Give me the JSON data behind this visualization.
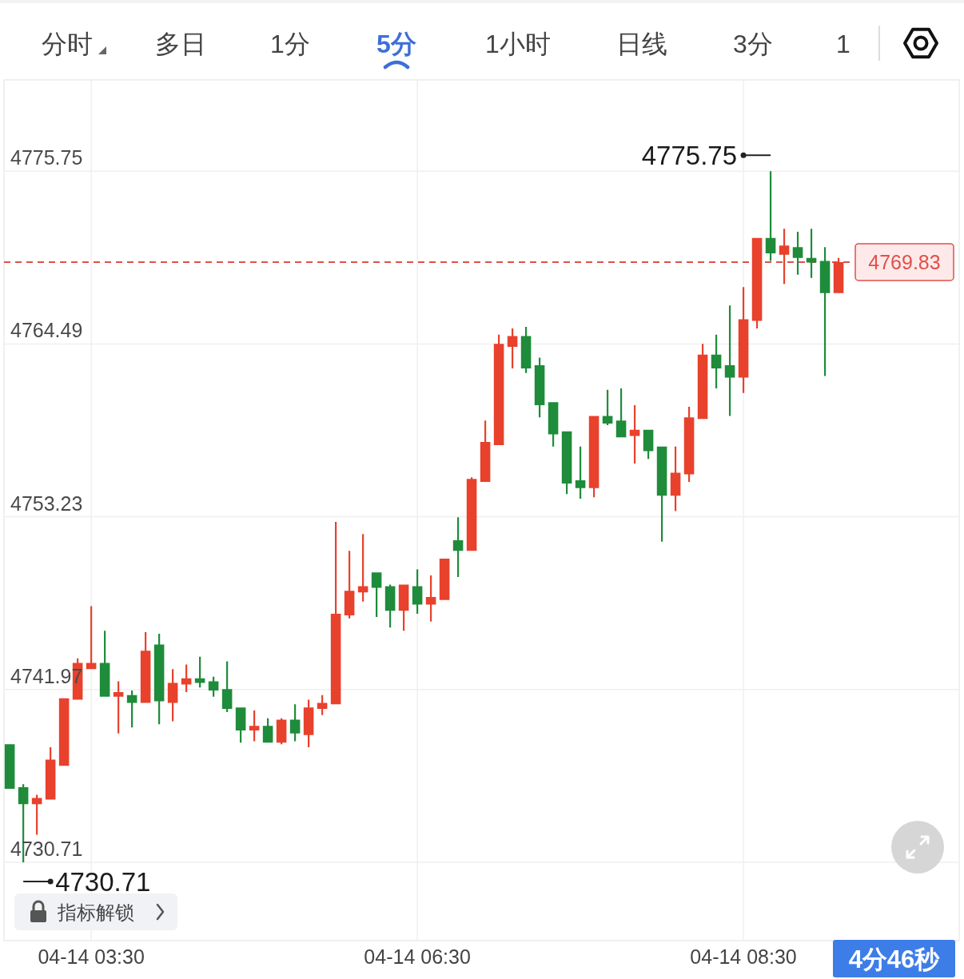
{
  "chart_data": {
    "type": "candlestick",
    "categories": [
      null,
      null,
      null,
      null,
      null,
      null,
      "04-14 03:30",
      null,
      null,
      null,
      null,
      null,
      null,
      null,
      null,
      null,
      null,
      null,
      null,
      null,
      null,
      null,
      null,
      null,
      null,
      null,
      null,
      null,
      null,
      null,
      "04-14 06:30",
      null,
      null,
      null,
      null,
      null,
      null,
      null,
      null,
      null,
      null,
      null,
      null,
      null,
      null,
      null,
      null,
      null,
      null,
      null,
      null,
      null,
      null,
      null,
      "04-14 08:30",
      null,
      null,
      null,
      null,
      null,
      null,
      null
    ],
    "ohlc": [
      [
        4738.4,
        4738.4,
        4735.5,
        4735.5
      ],
      [
        4735.6,
        4735.8,
        4730.71,
        4734.5
      ],
      [
        4734.5,
        4735.1,
        4732.5,
        4734.9
      ],
      [
        4734.8,
        4738.2,
        4734.8,
        4737.4
      ],
      [
        4737.0,
        4741.4,
        4737.0,
        4741.4
      ],
      [
        4741.3,
        4744.0,
        4741.3,
        4743.7
      ],
      [
        4743.3,
        4747.4,
        4743.3,
        4743.7
      ],
      [
        4743.7,
        4745.8,
        4741.5,
        4741.5
      ],
      [
        4741.5,
        4742.5,
        4739.1,
        4741.8
      ],
      [
        4741.6,
        4741.9,
        4739.5,
        4741.1
      ],
      [
        4741.1,
        4745.7,
        4741.1,
        4744.5
      ],
      [
        4744.9,
        4745.6,
        4739.7,
        4741.2
      ],
      [
        4741.1,
        4743.3,
        4739.9,
        4742.4
      ],
      [
        4742.3,
        4743.6,
        4741.8,
        4742.7
      ],
      [
        4742.7,
        4744.1,
        4742.1,
        4742.4
      ],
      [
        4742.5,
        4742.8,
        4741.5,
        4741.9
      ],
      [
        4742.0,
        4743.8,
        4740.5,
        4740.7
      ],
      [
        4740.8,
        4740.8,
        4738.5,
        4739.3
      ],
      [
        4739.3,
        4740.6,
        4738.6,
        4739.6
      ],
      [
        4739.6,
        4740.1,
        4738.5,
        4738.5
      ],
      [
        4738.5,
        4740.1,
        4738.4,
        4740.0
      ],
      [
        4740.0,
        4741.0,
        4738.6,
        4739.1
      ],
      [
        4739.0,
        4741.3,
        4738.2,
        4740.8
      ],
      [
        4740.7,
        4741.6,
        4740.3,
        4741.1
      ],
      [
        4741.0,
        4752.9,
        4741.0,
        4746.9
      ],
      [
        4746.8,
        4751.0,
        4746.6,
        4748.4
      ],
      [
        4748.3,
        4752.1,
        4747.7,
        4748.7
      ],
      [
        4749.6,
        4749.6,
        4746.7,
        4748.6
      ],
      [
        4748.7,
        4748.8,
        4746.0,
        4747.1
      ],
      [
        4747.1,
        4748.8,
        4745.8,
        4748.8
      ],
      [
        4748.7,
        4749.8,
        4746.9,
        4747.5
      ],
      [
        4747.5,
        4749.4,
        4746.4,
        4748.0
      ],
      [
        4747.8,
        4750.5,
        4747.8,
        4750.5
      ],
      [
        4751.7,
        4753.2,
        4749.3,
        4751.0
      ],
      [
        4751.0,
        4755.8,
        4751.0,
        4755.7
      ],
      [
        4755.5,
        4759.5,
        4755.5,
        4758.1
      ],
      [
        4757.9,
        4765.1,
        4757.9,
        4764.5
      ],
      [
        4764.3,
        4765.5,
        4762.9,
        4765.0
      ],
      [
        4765.0,
        4765.6,
        4762.6,
        4762.9
      ],
      [
        4763.1,
        4763.6,
        4759.7,
        4760.5
      ],
      [
        4760.7,
        4760.7,
        4757.8,
        4758.6
      ],
      [
        4758.8,
        4758.8,
        4754.7,
        4755.4
      ],
      [
        4755.6,
        4757.8,
        4754.4,
        4755.1
      ],
      [
        4755.1,
        4759.8,
        4754.5,
        4759.8
      ],
      [
        4759.8,
        4761.5,
        4759.2,
        4759.3
      ],
      [
        4759.5,
        4761.6,
        4758.4,
        4758.4
      ],
      [
        4758.5,
        4760.5,
        4756.7,
        4758.9
      ],
      [
        4758.9,
        4758.9,
        4757.0,
        4757.5
      ],
      [
        4757.8,
        4757.8,
        4751.6,
        4754.6
      ],
      [
        4754.6,
        4757.8,
        4753.6,
        4756.1
      ],
      [
        4756.0,
        4760.4,
        4755.5,
        4759.7
      ],
      [
        4759.6,
        4764.5,
        4759.6,
        4763.8
      ],
      [
        4763.8,
        4765.1,
        4761.6,
        4762.9
      ],
      [
        4763.1,
        4767.0,
        4759.8,
        4762.3
      ],
      [
        4762.3,
        4768.2,
        4761.3,
        4766.1
      ],
      [
        4766.0,
        4771.4,
        4765.5,
        4771.4
      ],
      [
        4771.4,
        4775.75,
        4769.9,
        4770.4
      ],
      [
        4770.3,
        4772.0,
        4768.4,
        4770.9
      ],
      [
        4770.8,
        4771.8,
        4769.0,
        4770.1
      ],
      [
        4770.1,
        4772.0,
        4768.8,
        4769.8
      ],
      [
        4769.9,
        4770.8,
        4762.4,
        4767.8
      ],
      [
        4767.8,
        4770.1,
        4767.8,
        4769.83
      ]
    ],
    "colors": [
      "#1e8c3a",
      "#1e8c3a",
      "#e8412c",
      "#e8412c",
      "#e8412c",
      "#e8412c",
      "#e8412c",
      "#1e8c3a",
      "#e8412c",
      "#1e8c3a",
      "#e8412c",
      "#1e8c3a",
      "#e8412c",
      "#e8412c",
      "#1e8c3a",
      "#1e8c3a",
      "#1e8c3a",
      "#1e8c3a",
      "#e8412c",
      "#1e8c3a",
      "#e8412c",
      "#1e8c3a",
      "#e8412c",
      "#e8412c",
      "#e8412c",
      "#e8412c",
      "#e8412c",
      "#1e8c3a",
      "#1e8c3a",
      "#e8412c",
      "#1e8c3a",
      "#e8412c",
      "#e8412c",
      "#1e8c3a",
      "#e8412c",
      "#e8412c",
      "#e8412c",
      "#e8412c",
      "#1e8c3a",
      "#1e8c3a",
      "#1e8c3a",
      "#1e8c3a",
      "#1e8c3a",
      "#e8412c",
      "#1e8c3a",
      "#1e8c3a",
      "#e8412c",
      "#1e8c3a",
      "#1e8c3a",
      "#e8412c",
      "#e8412c",
      "#e8412c",
      "#1e8c3a",
      "#1e8c3a",
      "#e8412c",
      "#e8412c",
      "#1e8c3a",
      "#e8412c",
      "#1e8c3a",
      "#1e8c3a",
      "#1e8c3a",
      "#e8412c"
    ],
    "ylim": [
      4725.6,
      4781.7
    ],
    "yticks": [
      4730.71,
      4741.97,
      4753.23,
      4764.49,
      4775.75
    ],
    "grid": true,
    "ref_lines": [
      {
        "axis": "y",
        "value": 4769.83,
        "label": "4769.83",
        "color": "#e0504a",
        "line_style": "dashed"
      }
    ],
    "annotations": [
      "分时",
      "多日",
      "1分",
      "5分",
      "1小时",
      "日线",
      "3分",
      "1",
      "4775.75",
      "4730.71",
      "指标解锁",
      "4分46秒"
    ]
  }
}
